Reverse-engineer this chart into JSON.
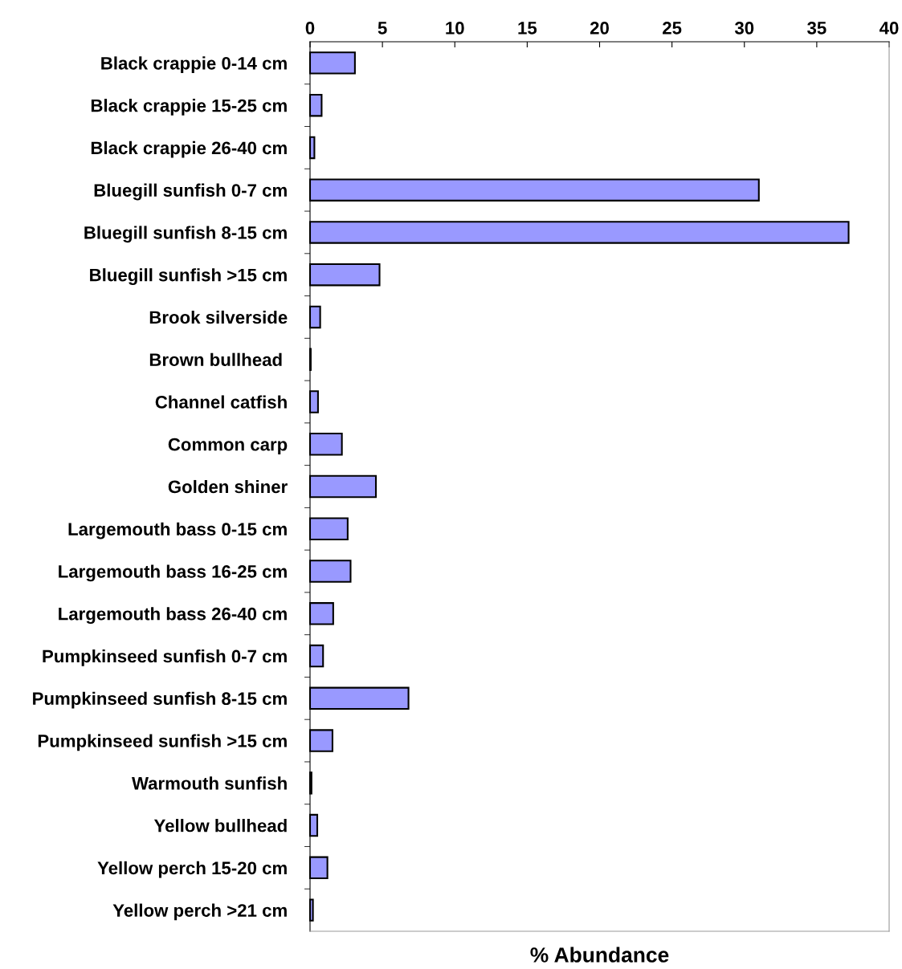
{
  "chart_data": {
    "type": "bar",
    "orientation": "horizontal",
    "xlabel": "% Abundance",
    "categories": [
      "Black crappie 0-14 cm",
      "Black crappie 15-25 cm",
      "Black crappie 26-40 cm",
      "Bluegill sunfish 0-7 cm",
      "Bluegill sunfish 8-15 cm",
      "Bluegill sunfish >15 cm",
      "Brook silverside",
      "Brown bullhead ",
      "Channel catfish",
      "Common carp",
      "Golden shiner",
      "Largemouth bass 0-15 cm",
      "Largemouth bass 16-25 cm",
      "Largemouth bass 26-40 cm",
      "Pumpkinseed sunfish 0-7 cm",
      "Pumpkinseed sunfish 8-15 cm",
      "Pumpkinseed sunfish >15 cm",
      "Warmouth sunfish",
      "Yellow bullhead",
      "Yellow perch 15-20 cm",
      "Yellow perch >21 cm"
    ],
    "values": [
      3.1,
      0.8,
      0.3,
      31.0,
      37.2,
      4.8,
      0.7,
      0.05,
      0.55,
      2.2,
      4.55,
      2.6,
      2.8,
      1.6,
      0.9,
      6.8,
      1.55,
      0.1,
      0.5,
      1.2,
      0.2
    ],
    "color": "#9999ff",
    "xlim": [
      0,
      40
    ],
    "xticks": [
      0,
      5,
      10,
      15,
      20,
      25,
      30,
      35,
      40
    ],
    "grid": false,
    "legend": false
  }
}
